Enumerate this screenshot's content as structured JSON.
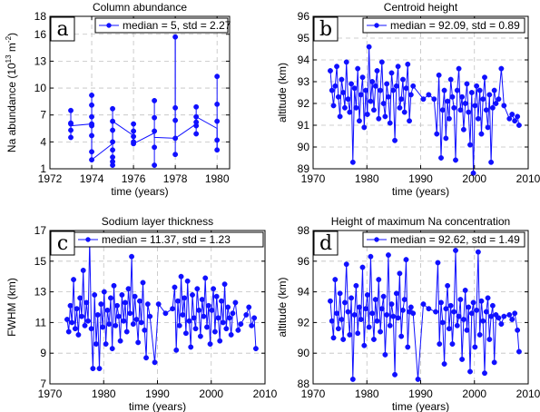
{
  "chart_data": [
    {
      "type": "line",
      "panel_letter": "a",
      "title": "Column abundance",
      "xlabel": "time (years)",
      "ylabel": "Na abundance (10",
      "ylabel_exp": "13",
      "ylabel_mid": " m",
      "ylabel_exp2": "-2",
      "ylabel_end": ")",
      "xlim": [
        1972,
        1980.6
      ],
      "ylim": [
        1,
        18
      ],
      "xticks": [
        1972,
        1974,
        1976,
        1978,
        1980
      ],
      "yticks": [
        1,
        4,
        7,
        10,
        13,
        16,
        18
      ],
      "legend": "median = 5, std = 2.27",
      "series": [
        {
          "x": [
            1973,
            1973,
            1973,
            1973,
            1973,
            1974,
            1974,
            1974,
            1974,
            1974,
            1974,
            1974,
            1974,
            1975,
            1975,
            1975,
            1975,
            1975,
            1975,
            1975,
            1975,
            1976,
            1976,
            1976,
            1976,
            1976,
            1977,
            1977,
            1977,
            1977,
            1977,
            1978,
            1978,
            1978,
            1978,
            1978,
            1979,
            1979,
            1979,
            1979,
            1979,
            1980,
            1980,
            1980,
            1980,
            1980
          ],
          "y": [
            7.5,
            6.1,
            5.3,
            4.5,
            6.0,
            9.2,
            8.1,
            6.8,
            6.0,
            5.8,
            4.7,
            2.9,
            2.0,
            7.7,
            6.3,
            5.3,
            4.0,
            3.1,
            2.3,
            1.8,
            1.4,
            6.0,
            5.2,
            4.6,
            4.0,
            3.8,
            8.6,
            6.7,
            5.2,
            3.4,
            1.4,
            15.7,
            7.8,
            6.4,
            4.4,
            2.6,
            7.9,
            6.8,
            6.2,
            5.8,
            4.9,
            11.3,
            8.2,
            6.3,
            4.2,
            3.1
          ],
          "path_x": [
            1973,
            1974,
            1974,
            1975,
            1975,
            1976,
            1976,
            1977,
            1977,
            1978,
            1978,
            1978,
            1978,
            1979,
            1979,
            1980,
            1980
          ],
          "path_y": [
            5.8,
            6.0,
            2.0,
            3.8,
            6.3,
            4.7,
            3.8,
            5.0,
            4.5,
            4.4,
            15.7,
            6.0,
            4.4,
            6.0,
            6.8,
            5.5,
            3.1
          ]
        }
      ]
    },
    {
      "type": "line",
      "panel_letter": "b",
      "title": "Centroid height",
      "xlabel": "time (years)",
      "ylabel": "altitude (km)",
      "xlim": [
        1970,
        2010
      ],
      "ylim": [
        89,
        96
      ],
      "xticks": [
        1970,
        1980,
        1990,
        2000,
        2010
      ],
      "yticks": [
        89,
        90,
        91,
        92,
        93,
        94,
        95,
        96
      ],
      "legend": "median = 92.09, std = 0.89",
      "series": [
        {
          "x": [
            1973.2,
            1973.5,
            1973.8,
            1974.1,
            1974.4,
            1974.7,
            1975.0,
            1975.3,
            1975.6,
            1975.9,
            1976.2,
            1976.5,
            1976.8,
            1977.1,
            1977.4,
            1977.7,
            1978.0,
            1978.3,
            1978.6,
            1978.9,
            1979.2,
            1979.5,
            1979.8,
            1980.1,
            1980.4,
            1980.7,
            1981.0,
            1981.3,
            1981.6,
            1981.9,
            1982.2,
            1982.5,
            1982.8,
            1983.1,
            1983.4,
            1983.7,
            1984.0,
            1984.3,
            1984.6,
            1984.9,
            1985.2,
            1985.5,
            1985.8,
            1986.1,
            1986.4,
            1986.7,
            1987.0,
            1987.3,
            1987.6,
            1987.9,
            1988.2,
            1988.6,
            1990.5,
            1991.5,
            1992.5,
            1993.0,
            1993.4,
            1993.8,
            1994.1,
            1994.4,
            1994.7,
            1995.0,
            1995.3,
            1995.6,
            1995.9,
            1996.2,
            1996.5,
            1996.8,
            1997.1,
            1997.4,
            1997.7,
            1998.0,
            1998.3,
            1998.6,
            1998.9,
            1999.2,
            1999.5,
            1999.8,
            2000.1,
            2000.4,
            2000.7,
            2001.0,
            2001.3,
            2001.6,
            2001.9,
            2002.2,
            2002.5,
            2002.8,
            2003.1,
            2003.4,
            2003.7,
            2004.0,
            2004.5,
            2005.0,
            2005.5,
            2006.5,
            2007.0,
            2007.5,
            2008.0,
            2008.3
          ],
          "y": [
            93.5,
            92.6,
            91.9,
            92.8,
            93.7,
            92.3,
            91.4,
            93.1,
            92.5,
            91.8,
            93.9,
            92.2,
            91.6,
            92.9,
            89.3,
            92.7,
            91.8,
            93.6,
            91.2,
            92.4,
            93.2,
            90.9,
            92.6,
            91.5,
            94.6,
            92.1,
            93.0,
            91.7,
            92.8,
            93.5,
            91.3,
            92.6,
            93.9,
            92.0,
            91.4,
            92.9,
            92.3,
            91.1,
            93.4,
            92.6,
            90.3,
            92.8,
            93.7,
            91.8,
            92.2,
            93.1,
            91.6,
            92.7,
            93.8,
            91.2,
            92.4,
            92.8,
            92.2,
            92.4,
            92.2,
            90.6,
            93.3,
            89.5,
            91.7,
            92.6,
            90.4,
            92.1,
            91.3,
            93.1,
            92.3,
            91.8,
            89.4,
            92.6,
            93.6,
            91.7,
            92.3,
            90.8,
            92.0,
            92.9,
            91.6,
            90.1,
            92.5,
            88.8,
            91.9,
            92.8,
            91.3,
            92.6,
            90.6,
            92.2,
            93.2,
            91.7,
            90.9,
            92.4,
            89.3,
            91.8,
            92.6,
            92.0,
            92.2,
            93.6,
            91.9,
            91.3,
            91.5,
            91.2,
            91.4,
            91.0
          ]
        }
      ]
    },
    {
      "type": "line",
      "panel_letter": "c",
      "title": "Sodium layer thickness",
      "xlabel": "time (years)",
      "ylabel": "FWHM (km)",
      "xlim": [
        1970,
        2010
      ],
      "ylim": [
        7,
        17
      ],
      "xticks": [
        1970,
        1980,
        1990,
        2000,
        2010
      ],
      "yticks": [
        7,
        9,
        11,
        13,
        15,
        17
      ],
      "legend": "median = 11.37, std = 1.23",
      "series": [
        {
          "x": [
            1973.2,
            1973.5,
            1973.8,
            1974.1,
            1974.4,
            1974.7,
            1975.0,
            1975.3,
            1975.6,
            1975.9,
            1976.2,
            1976.5,
            1976.8,
            1977.1,
            1977.4,
            1977.7,
            1978.0,
            1978.3,
            1978.6,
            1978.9,
            1979.2,
            1979.5,
            1979.8,
            1980.1,
            1980.4,
            1980.7,
            1981.0,
            1981.3,
            1981.6,
            1981.9,
            1982.2,
            1982.5,
            1982.8,
            1983.1,
            1983.4,
            1983.7,
            1984.0,
            1984.3,
            1984.6,
            1984.9,
            1985.2,
            1985.5,
            1985.8,
            1986.1,
            1986.4,
            1986.7,
            1987.0,
            1987.3,
            1987.6,
            1987.9,
            1988.2,
            1988.6,
            1989.5,
            1990.2,
            1991.5,
            1992.8,
            1993.2,
            1993.5,
            1993.8,
            1994.1,
            1994.4,
            1994.7,
            1995.0,
            1995.3,
            1995.6,
            1995.9,
            1996.2,
            1996.5,
            1996.8,
            1997.1,
            1997.4,
            1997.7,
            1998.0,
            1998.3,
            1998.6,
            1998.9,
            1999.2,
            1999.5,
            1999.8,
            2000.1,
            2000.4,
            2000.7,
            2001.0,
            2001.3,
            2001.6,
            2001.9,
            2002.2,
            2002.5,
            2002.8,
            2003.1,
            2003.4,
            2003.7,
            2004.0,
            2004.5,
            2005.0,
            2005.5,
            2006.5,
            2007.0,
            2007.5,
            2008.0,
            2008.3
          ],
          "y": [
            11.2,
            10.4,
            12.1,
            11.0,
            13.8,
            10.6,
            11.9,
            10.2,
            12.6,
            11.4,
            14.4,
            10.8,
            12.3,
            11.1,
            16.4,
            10.6,
            8.0,
            12.8,
            9.6,
            11.5,
            8.0,
            12.2,
            10.7,
            13.0,
            9.6,
            11.8,
            10.9,
            12.6,
            9.3,
            13.4,
            10.8,
            12.1,
            11.4,
            9.8,
            12.8,
            11.1,
            12.3,
            10.4,
            13.2,
            11.6,
            15.3,
            10.9,
            12.7,
            11.2,
            9.7,
            12.4,
            11.0,
            13.6,
            10.5,
            8.7,
            12.2,
            11.4,
            8.4,
            12.2,
            11.6,
            11.9,
            13.3,
            9.2,
            12.4,
            10.8,
            14.0,
            11.5,
            12.6,
            10.3,
            13.7,
            11.1,
            9.4,
            12.8,
            11.3,
            10.6,
            13.2,
            11.8,
            10.1,
            12.5,
            11.4,
            13.9,
            10.7,
            12.1,
            9.6,
            11.8,
            13.2,
            10.4,
            12.7,
            11.3,
            9.8,
            12.4,
            11.0,
            13.5,
            10.6,
            12.0,
            11.3,
            10.2,
            11.6,
            12.3,
            10.5,
            10.9,
            11.5,
            12.0,
            10.8,
            11.3,
            9.3
          ]
        }
      ]
    },
    {
      "type": "line",
      "panel_letter": "d",
      "title": "Height of maximum Na concentration",
      "xlabel": "time (years)",
      "ylabel": "altitude (km)",
      "xlim": [
        1970,
        2010
      ],
      "ylim": [
        88,
        98
      ],
      "xticks": [
        1970,
        1980,
        1990,
        2000,
        2010
      ],
      "yticks": [
        88,
        90,
        92,
        94,
        96,
        98
      ],
      "legend": "median = 92.62, std = 1.49",
      "series": [
        {
          "x": [
            1973.2,
            1973.5,
            1973.8,
            1974.1,
            1974.4,
            1974.7,
            1975.0,
            1975.3,
            1975.6,
            1975.9,
            1976.2,
            1976.5,
            1976.8,
            1977.1,
            1977.4,
            1977.7,
            1978.0,
            1978.3,
            1978.6,
            1978.9,
            1979.2,
            1979.5,
            1979.8,
            1980.1,
            1980.4,
            1980.7,
            1981.0,
            1981.3,
            1981.6,
            1981.9,
            1982.2,
            1982.5,
            1982.8,
            1983.1,
            1983.4,
            1983.7,
            1984.0,
            1984.3,
            1984.6,
            1984.9,
            1985.2,
            1985.5,
            1985.8,
            1986.1,
            1986.4,
            1986.7,
            1987.0,
            1987.3,
            1987.6,
            1987.9,
            1988.2,
            1988.6,
            1989.5,
            1990.5,
            1991.5,
            1992.8,
            1993.2,
            1993.5,
            1993.8,
            1994.1,
            1994.4,
            1994.7,
            1995.0,
            1995.3,
            1995.6,
            1995.9,
            1996.2,
            1996.5,
            1996.8,
            1997.1,
            1997.4,
            1997.7,
            1998.0,
            1998.3,
            1998.6,
            1998.9,
            1999.2,
            1999.5,
            1999.8,
            2000.1,
            2000.4,
            2000.7,
            2001.0,
            2001.3,
            2001.6,
            2001.9,
            2002.2,
            2002.5,
            2002.8,
            2003.1,
            2003.4,
            2003.7,
            2004.0,
            2004.5,
            2005.0,
            2005.5,
            2006.5,
            2007.0,
            2007.5,
            2008.0,
            2008.3
          ],
          "y": [
            93.4,
            92.1,
            91.0,
            94.8,
            92.6,
            91.6,
            93.9,
            92.2,
            90.9,
            93.3,
            95.8,
            92.7,
            91.2,
            93.6,
            88.3,
            92.5,
            94.4,
            91.3,
            93.0,
            92.2,
            95.6,
            90.5,
            92.9,
            93.8,
            91.7,
            96.3,
            92.6,
            90.9,
            93.5,
            92.1,
            94.8,
            91.4,
            92.9,
            93.7,
            89.9,
            92.5,
            96.4,
            91.8,
            93.2,
            92.4,
            88.6,
            93.9,
            92.3,
            95.2,
            91.1,
            92.8,
            93.5,
            96.1,
            90.4,
            92.7,
            93.0,
            92.6,
            88.3,
            93.2,
            92.9,
            92.7,
            95.9,
            90.6,
            93.3,
            92.0,
            89.3,
            92.9,
            94.4,
            91.6,
            93.1,
            90.6,
            92.7,
            96.7,
            91.8,
            92.4,
            93.5,
            89.6,
            92.2,
            94.1,
            91.5,
            93.0,
            88.8,
            92.6,
            93.3,
            90.4,
            92.8,
            96.6,
            91.2,
            93.4,
            92.1,
            88.7,
            92.7,
            93.6,
            90.9,
            92.4,
            93.1,
            89.4,
            92.5,
            92.3,
            91.9,
            92.4,
            92.5,
            92.2,
            92.6,
            91.5,
            90.1
          ]
        }
      ]
    }
  ],
  "colors": {
    "series": "#1010ff",
    "grid": "#c0c0c0",
    "axis": "#000000"
  }
}
